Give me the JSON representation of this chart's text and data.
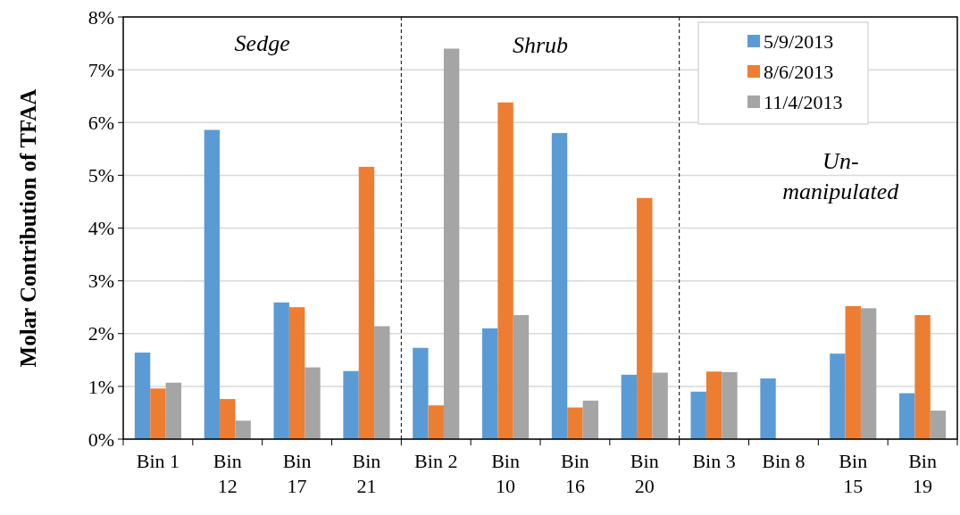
{
  "chart_data": {
    "type": "bar",
    "ylabel": "Molar Contribution of TFAA",
    "categories": [
      "Bin 1",
      "Bin 12",
      "Bin 17",
      "Bin 21",
      "Bin 2",
      "Bin 10",
      "Bin 16",
      "Bin 20",
      "Bin 3",
      "Bin 8",
      "Bin 15",
      "Bin 19"
    ],
    "series": [
      {
        "name": "5/9/2013",
        "color": "#5b9bd5",
        "values": [
          1.64,
          5.86,
          2.59,
          1.29,
          1.73,
          2.1,
          5.8,
          1.22,
          0.9,
          1.15,
          1.62,
          0.87
        ]
      },
      {
        "name": "8/6/2013",
        "color": "#ed7d31",
        "values": [
          0.96,
          0.76,
          2.5,
          5.16,
          0.64,
          6.38,
          0.6,
          4.57,
          1.28,
          null,
          2.52,
          2.35
        ]
      },
      {
        "name": "11/4/2013",
        "color": "#a5a5a5",
        "values": [
          1.07,
          0.35,
          1.36,
          2.14,
          7.4,
          2.35,
          0.73,
          1.26,
          1.27,
          null,
          2.48,
          0.54
        ]
      }
    ],
    "ylim": [
      0,
      8
    ],
    "yticks": [
      {
        "value": 0,
        "label": "0%"
      },
      {
        "value": 1,
        "label": "1%"
      },
      {
        "value": 2,
        "label": "2%"
      },
      {
        "value": 3,
        "label": "3%"
      },
      {
        "value": 4,
        "label": "4%"
      },
      {
        "value": 5,
        "label": "5%"
      },
      {
        "value": 6,
        "label": "6%"
      },
      {
        "value": 7,
        "label": "7%"
      },
      {
        "value": 8,
        "label": "8%"
      }
    ],
    "grid": "y",
    "legend": "top right",
    "annotations": [
      "Sedge",
      "Shrub",
      "Un-manipulated"
    ]
  }
}
